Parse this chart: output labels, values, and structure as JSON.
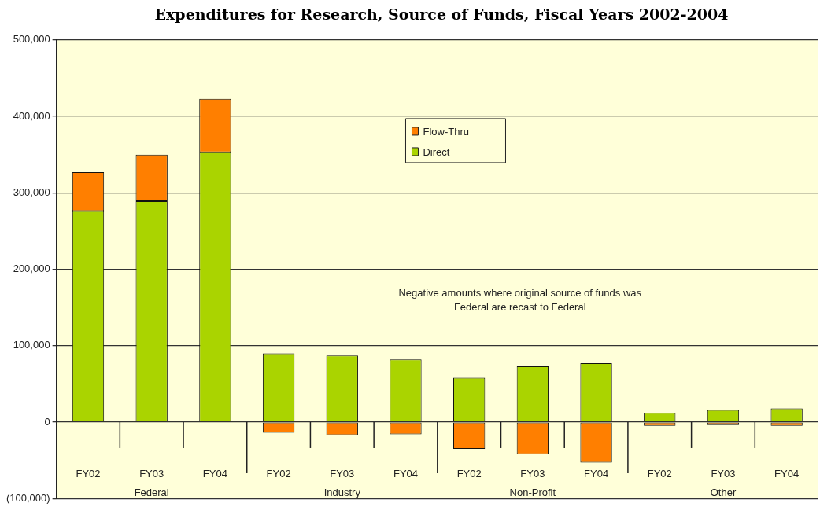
{
  "chart_data": {
    "type": "bar",
    "title": "Expenditures for Research, Source of Funds, Fiscal Years 2002-2004",
    "categories": [
      "FY02",
      "FY03",
      "FY04",
      "FY02",
      "FY03",
      "FY04",
      "FY02",
      "FY03",
      "FY04",
      "FY02",
      "FY03",
      "FY04"
    ],
    "stacked": true,
    "series": [
      {
        "name": "Direct",
        "color": "#aad400",
        "values": [
          276000,
          289000,
          353000,
          90000,
          87000,
          82000,
          58000,
          73000,
          77000,
          12000,
          16000,
          18000
        ]
      },
      {
        "name": "Flow-Thru",
        "color": "#ff7f00",
        "values": [
          51000,
          61000,
          70000,
          -14000,
          -17000,
          -16000,
          -35000,
          -42000,
          -53000,
          -5000,
          -4000,
          -5000
        ]
      }
    ],
    "ylim": [
      -100000,
      500000
    ],
    "yticks": [
      {
        "value": -100000,
        "label": "(100,000)"
      },
      {
        "value": 0,
        "label": "0"
      },
      {
        "value": 100000,
        "label": "100,000"
      },
      {
        "value": 200000,
        "label": "200,000"
      },
      {
        "value": 300000,
        "label": "300,000"
      },
      {
        "value": 400000,
        "label": "400,000"
      },
      {
        "value": 500000,
        "label": "500,000"
      }
    ],
    "grid": "y",
    "legend": "top",
    "annotations": [
      "Negative amounts where original source of funds was Federal are recast to Federal",
      "Federal",
      "Industry",
      "Non-Profit",
      "Other"
    ]
  }
}
